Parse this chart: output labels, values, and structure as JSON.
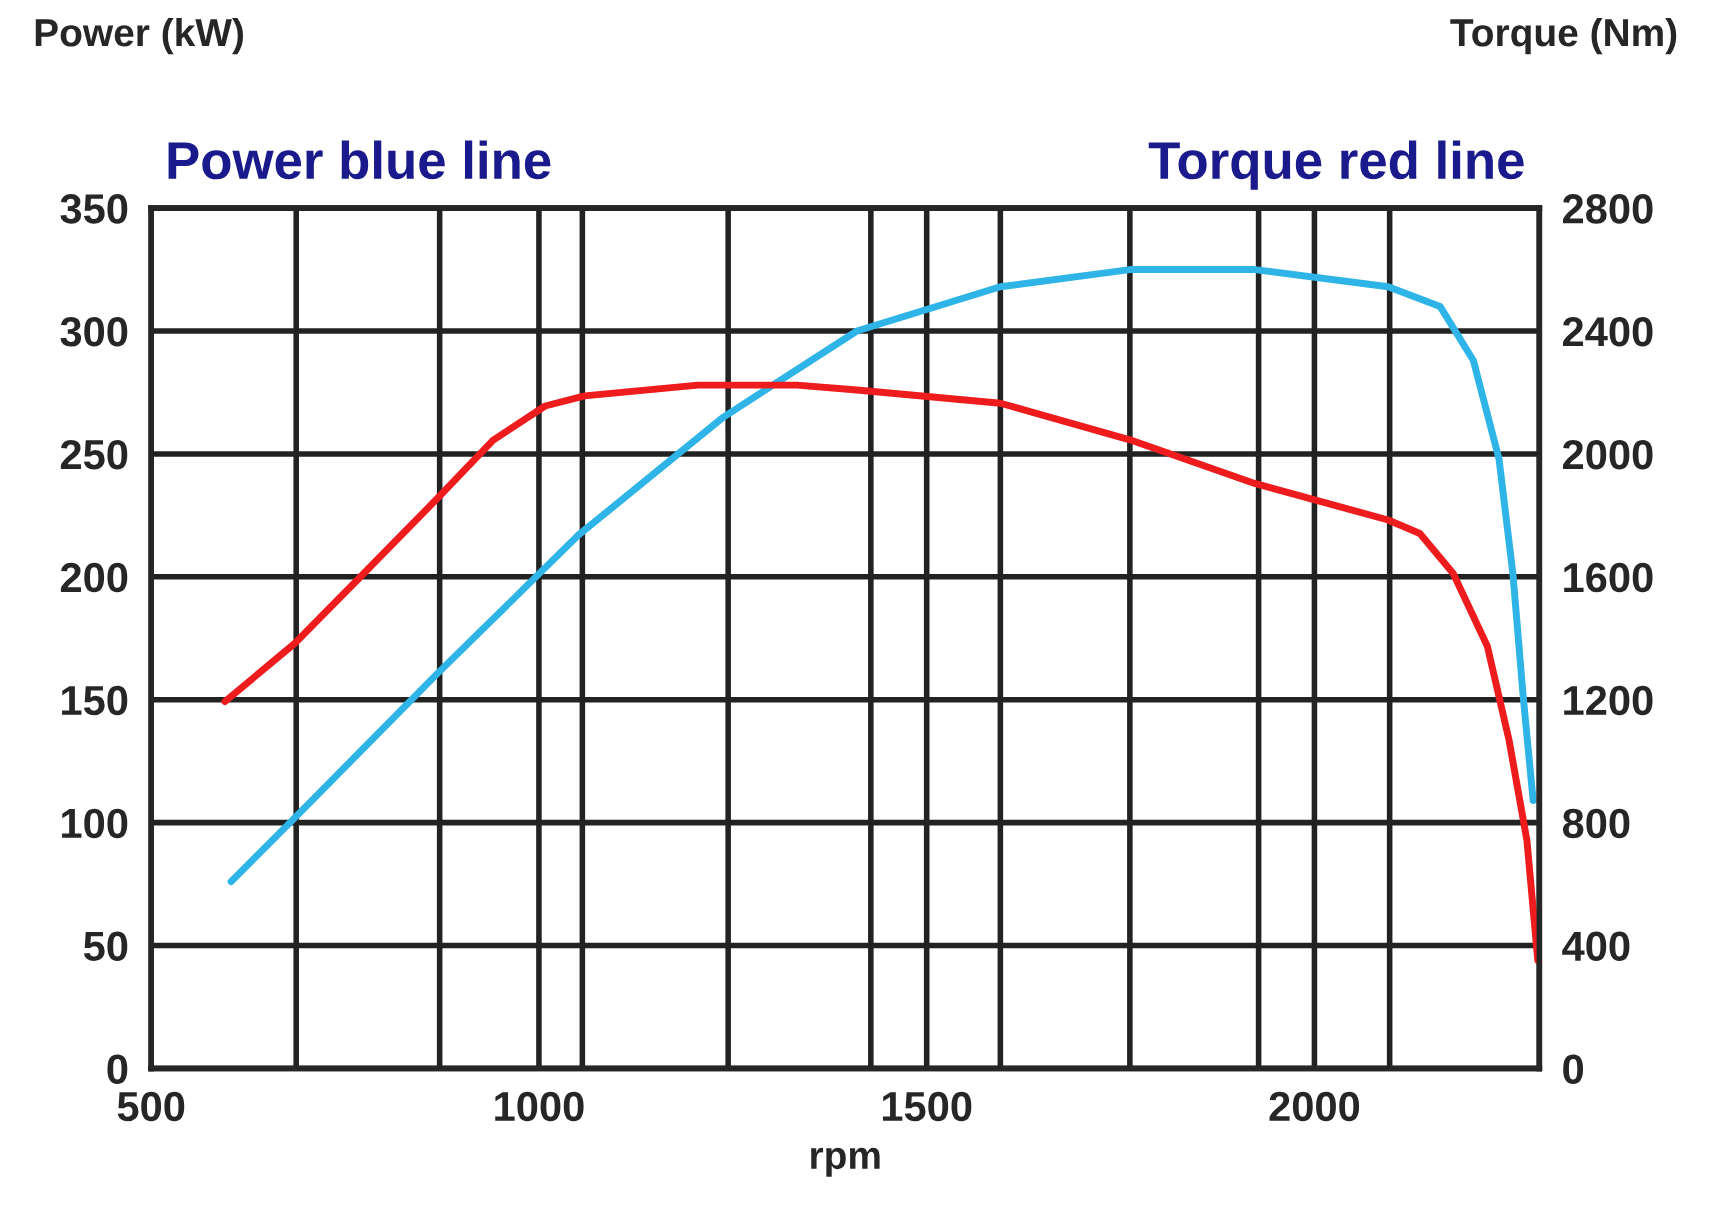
{
  "chart_data": {
    "type": "line",
    "xlabel": "rpm",
    "ylabel": "Power (kW)",
    "y2label": "Torque (Nm)",
    "annotations": [
      "Power blue line",
      "Torque red line"
    ],
    "xlim": [
      500,
      2290
    ],
    "xticks": [
      500,
      {
        "value": 687,
        "label": null
      },
      {
        "value": 872,
        "label": null
      },
      1000,
      {
        "value": 1056,
        "label": null
      },
      {
        "value": 1244,
        "label": null
      },
      {
        "value": 1428,
        "label": null
      },
      1500,
      {
        "value": 1595,
        "label": null
      },
      {
        "value": 1762,
        "label": null
      },
      {
        "value": 1928,
        "label": null
      },
      2000,
      {
        "value": 2097,
        "label": null
      }
    ],
    "ylim": [
      0,
      350
    ],
    "yticks": [
      0,
      50,
      100,
      150,
      200,
      250,
      300,
      350
    ],
    "y2lim": [
      0,
      2800
    ],
    "y2ticks": [
      0,
      400,
      800,
      1200,
      1600,
      2000,
      2400,
      2800
    ],
    "grid": true,
    "legend": false,
    "marker": "none",
    "line_style": "solid",
    "series": [
      {
        "color": "#2eb4e6",
        "x": [
          603,
          679,
          867,
          1051,
          1238,
          1410,
          1595,
          1762,
          1923,
          2095,
          2162,
          2205,
          2238,
          2256,
          2269,
          2282
        ],
        "values": [
          76,
          100,
          160,
          217,
          265,
          300,
          318,
          325,
          325,
          318,
          310,
          288,
          248,
          201,
          152,
          109
        ]
      },
      {
        "color": "#ee1c1c",
        "axis": "y2",
        "x": [
          595,
          685,
          774,
          867,
          941,
          1008,
          1059,
          1205,
          1333,
          1410,
          1595,
          1762,
          1923,
          2095,
          2136,
          2179,
          2223,
          2251,
          2274,
          2288
        ],
        "values": [
          1194,
          1383,
          1611,
          1850,
          2045,
          2156,
          2189,
          2224,
          2224,
          2208,
          2165,
          2046,
          1904,
          1785,
          1741,
          1611,
          1374,
          1068,
          742,
          352
        ]
      }
    ]
  }
}
